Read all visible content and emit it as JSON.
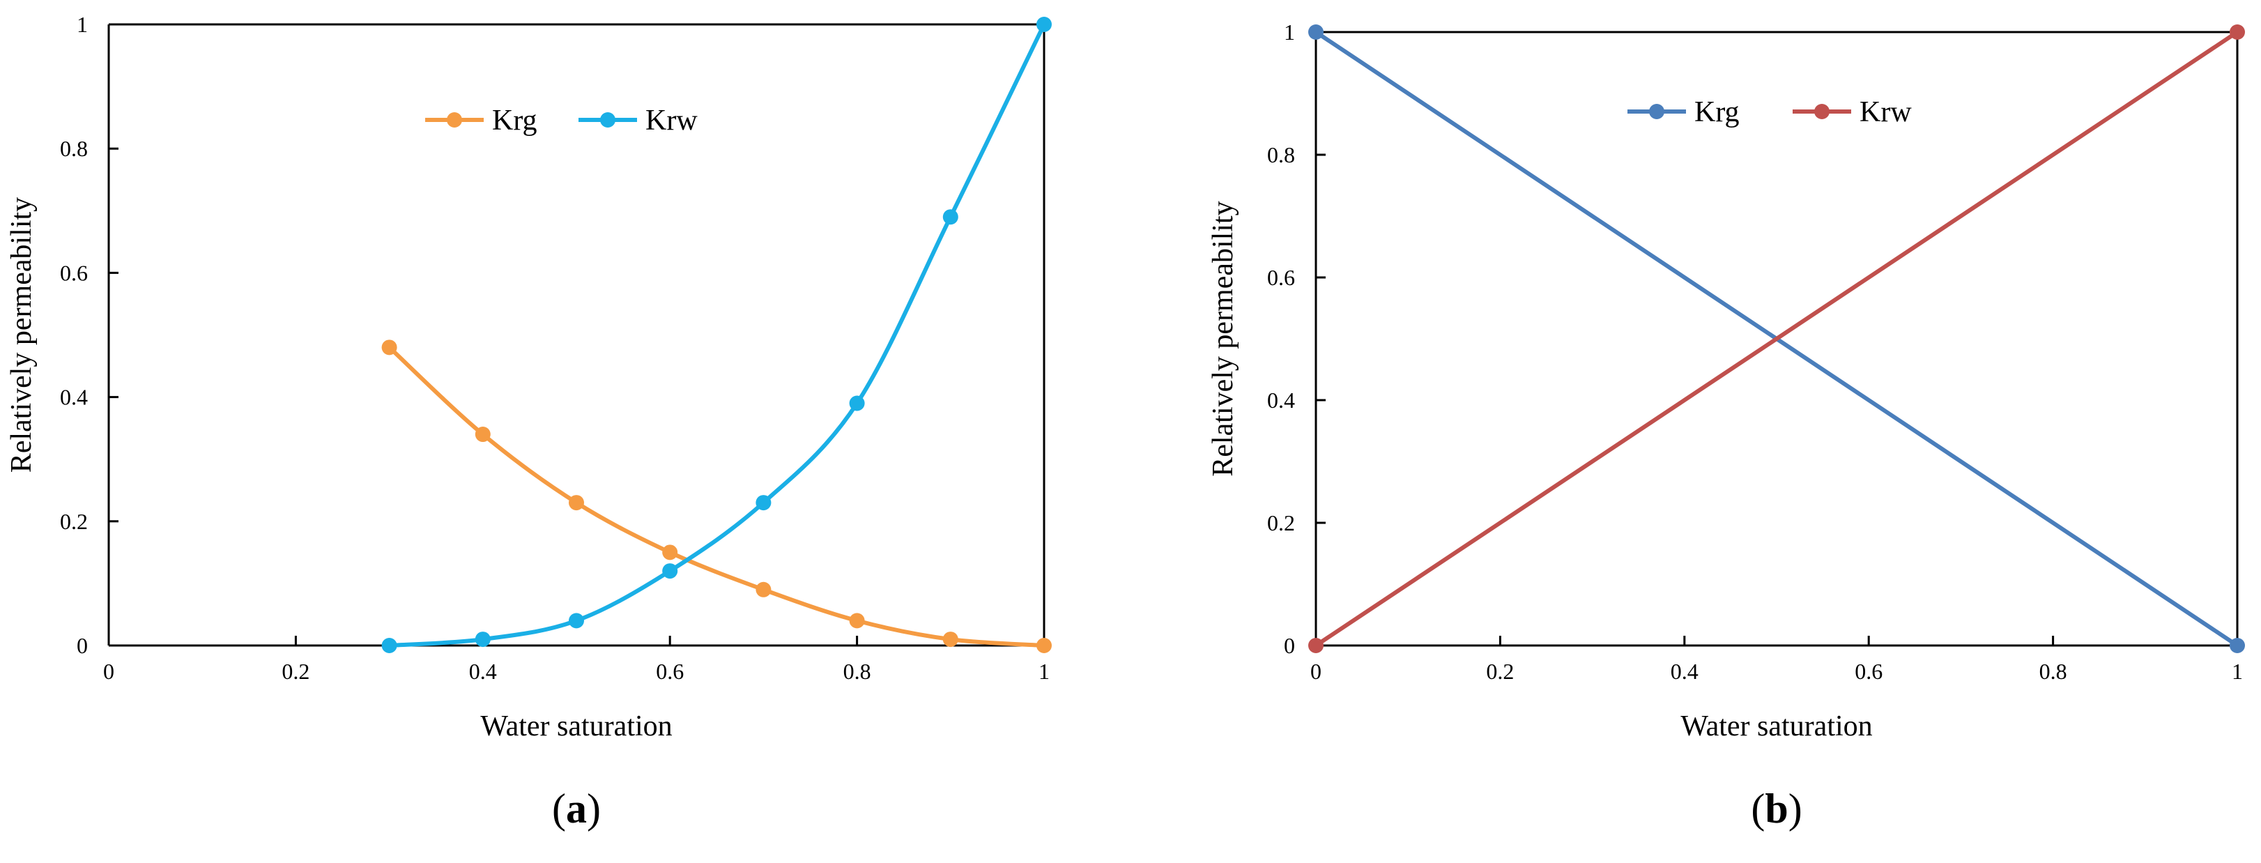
{
  "chart_data": [
    {
      "type": "line",
      "panel_label": "(a)",
      "panel_letter": "a",
      "xlabel": "Water saturation",
      "ylabel": "Relatively permeability",
      "xlim": [
        0,
        1
      ],
      "ylim": [
        0,
        1
      ],
      "xticks": [
        "0",
        "0.2",
        "0.4",
        "0.6",
        "0.8",
        "1"
      ],
      "yticks": [
        "0",
        "0.2",
        "0.4",
        "0.6",
        "0.8",
        "1"
      ],
      "grid": false,
      "legend_position": "top-center",
      "smooth": true,
      "series": [
        {
          "name": "Krg",
          "color": "#F59B42",
          "x": [
            0.3,
            0.4,
            0.5,
            0.6,
            0.7,
            0.8,
            0.9,
            1.0
          ],
          "y": [
            0.48,
            0.34,
            0.23,
            0.15,
            0.09,
            0.04,
            0.01,
            0.0
          ]
        },
        {
          "name": "Krw",
          "color": "#1AAFE6",
          "x": [
            0.3,
            0.4,
            0.5,
            0.6,
            0.7,
            0.8,
            0.9,
            1.0
          ],
          "y": [
            0.0,
            0.01,
            0.04,
            0.12,
            0.23,
            0.39,
            0.69,
            1.0
          ]
        }
      ]
    },
    {
      "type": "line",
      "panel_label": "(b)",
      "panel_letter": "b",
      "xlabel": "Water saturation",
      "ylabel": "Relatively permeability",
      "xlim": [
        0,
        1
      ],
      "ylim": [
        0,
        1
      ],
      "xticks": [
        "0",
        "0.2",
        "0.4",
        "0.6",
        "0.8",
        "1"
      ],
      "yticks": [
        "0",
        "0.2",
        "0.4",
        "0.6",
        "0.8",
        "1"
      ],
      "grid": false,
      "legend_position": "top-center",
      "smooth": false,
      "series": [
        {
          "name": "Krg",
          "color": "#4A7EBB",
          "x": [
            0,
            1
          ],
          "y": [
            1,
            0
          ]
        },
        {
          "name": "Krw",
          "color": "#C0504D",
          "x": [
            0,
            1
          ],
          "y": [
            0,
            1
          ]
        }
      ]
    }
  ]
}
